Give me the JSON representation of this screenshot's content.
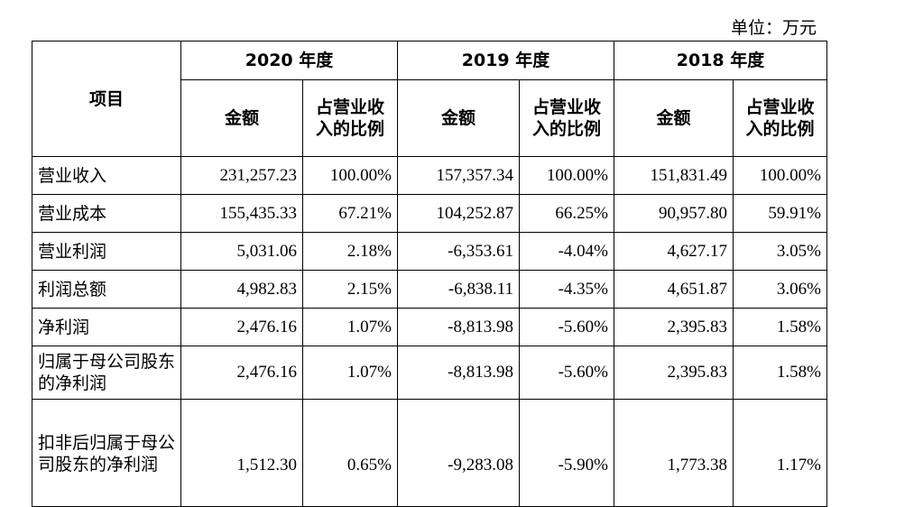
{
  "unit_label": "单位：万元",
  "header": {
    "item_label": "项目",
    "years": [
      "2020 年度",
      "2019 年度",
      "2018 年度"
    ],
    "amount_label": "金额",
    "ratio_label": "占营业收入的比例"
  },
  "rows": [
    {
      "item": "营业收入",
      "values": [
        "231,257.23",
        "100.00%",
        "157,357.34",
        "100.00%",
        "151,831.49",
        "100.00%"
      ]
    },
    {
      "item": "营业成本",
      "values": [
        "155,435.33",
        "67.21%",
        "104,252.87",
        "66.25%",
        "90,957.80",
        "59.91%"
      ]
    },
    {
      "item": "营业利润",
      "values": [
        "5,031.06",
        "2.18%",
        "-6,353.61",
        "-4.04%",
        "4,627.17",
        "3.05%"
      ]
    },
    {
      "item": "利润总额",
      "values": [
        "4,982.83",
        "2.15%",
        "-6,838.11",
        "-4.35%",
        "4,651.87",
        "3.06%"
      ]
    },
    {
      "item": "净利润",
      "values": [
        "2,476.16",
        "1.07%",
        "-8,813.98",
        "-5.60%",
        "2,395.83",
        "1.58%"
      ]
    },
    {
      "item": "归属于母公司股东的净利润",
      "values": [
        "2,476.16",
        "1.07%",
        "-8,813.98",
        "-5.60%",
        "2,395.83",
        "1.58%"
      ]
    },
    {
      "item": "扣非后归属于母公司股东的净利润",
      "values": [
        "1,512.30",
        "0.65%",
        "-9,283.08",
        "-5.90%",
        "1,773.38",
        "1.17%"
      ]
    }
  ]
}
